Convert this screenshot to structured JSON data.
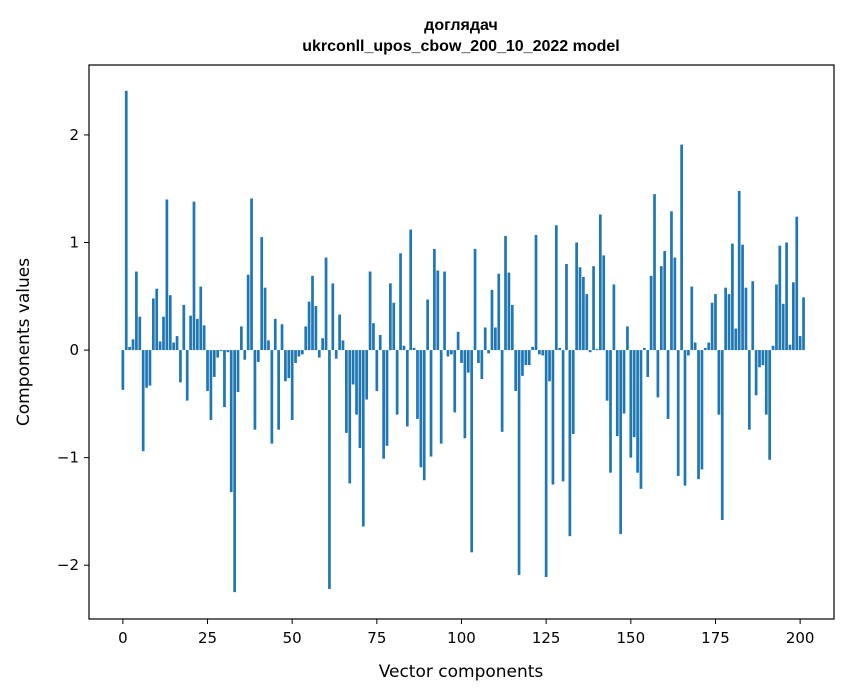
{
  "chart_data": {
    "type": "bar",
    "title_line1": "доглядач",
    "title_line2": "ukrconll_upos_cbow_200_10_2022 model",
    "xlabel": "Vector components",
    "ylabel": "Components values",
    "xlim": [
      -10,
      210
    ],
    "ylim": [
      -2.5,
      2.65
    ],
    "xticks": [
      0,
      25,
      50,
      75,
      100,
      125,
      150,
      175,
      200
    ],
    "yticks": [
      -2,
      -1,
      0,
      1,
      2
    ],
    "ytick_labels": [
      "−2",
      "−1",
      "0",
      "1",
      "2"
    ],
    "bar_color": "#1f77b4",
    "values": [
      -0.37,
      2.41,
      0.03,
      0.1,
      0.73,
      0.31,
      -0.94,
      -0.35,
      -0.33,
      0.48,
      0.57,
      0.08,
      0.31,
      1.4,
      0.51,
      0.07,
      0.13,
      -0.3,
      0.42,
      -0.47,
      0.32,
      1.38,
      0.29,
      0.59,
      0.23,
      -0.38,
      -0.65,
      -0.25,
      -0.07,
      -0.01,
      -0.53,
      -0.02,
      -1.32,
      -2.25,
      -0.39,
      0.22,
      -0.09,
      0.7,
      1.41,
      -0.74,
      -0.11,
      1.05,
      0.58,
      0.09,
      -0.87,
      0.29,
      -0.74,
      0.24,
      -0.29,
      -0.26,
      -0.65,
      -0.12,
      -0.06,
      -0.04,
      0.22,
      0.45,
      0.69,
      0.41,
      -0.07,
      0.11,
      0.86,
      -2.22,
      0.62,
      -0.08,
      0.33,
      0.09,
      -0.77,
      -1.24,
      -0.32,
      -0.6,
      -0.91,
      -1.64,
      -0.46,
      0.73,
      0.25,
      -0.38,
      0.14,
      -1.01,
      -0.89,
      0.62,
      0.44,
      -0.6,
      0.9,
      0.04,
      -0.71,
      1.12,
      0.02,
      -0.64,
      -1.09,
      -1.21,
      0.47,
      -0.99,
      0.94,
      0.74,
      -0.87,
      0.73,
      -0.06,
      -0.04,
      -0.58,
      0.17,
      -0.12,
      -0.82,
      -0.21,
      -1.88,
      0.94,
      -0.12,
      -0.27,
      0.21,
      -0.03,
      0.56,
      0.21,
      0.71,
      -0.76,
      1.06,
      0.72,
      0.42,
      -0.38,
      -2.09,
      -0.24,
      -0.14,
      -0.14,
      0.03,
      1.07,
      -0.04,
      -0.05,
      -2.11,
      -0.29,
      -1.25,
      1.16,
      0.02,
      -1.22,
      0.8,
      -1.73,
      -0.78,
      1.0,
      0.77,
      0.68,
      0.52,
      -0.02,
      0.78,
      0.01,
      1.26,
      0.88,
      -0.47,
      -1.14,
      0.61,
      -0.8,
      -1.71,
      -0.59,
      0.22,
      -1.0,
      -0.81,
      -1.14,
      -1.29,
      0.02,
      -0.25,
      0.69,
      1.45,
      -0.44,
      0.78,
      0.92,
      -0.64,
      1.29,
      0.86,
      -1.17,
      1.91,
      -1.26,
      -0.05,
      0.59,
      0.07,
      -1.2,
      -1.11,
      0.02,
      0.07,
      0.44,
      0.52,
      -0.6,
      -1.58,
      0.58,
      0.52,
      0.99,
      0.2,
      1.48,
      0.98,
      0.58,
      -0.74,
      0.64,
      -0.42,
      -0.16,
      -0.14,
      -0.6,
      -1.02,
      0.04,
      0.61,
      0.97,
      0.43,
      1.0,
      0.05,
      0.63,
      1.24,
      0.13,
      0.49
    ]
  }
}
